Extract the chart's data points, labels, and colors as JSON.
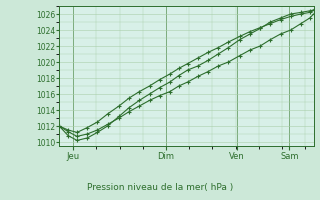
{
  "background_color": "#cce8d8",
  "plot_bg_color": "#d8f0e8",
  "grid_color": "#aacfaa",
  "line_color": "#2d6e2d",
  "ylabel_text": "Pression niveau de la mer( hPa )",
  "xtick_labels": [
    "Jeu",
    "Dim",
    "Ven",
    "Sam"
  ],
  "ylim": [
    1009.5,
    1027.0
  ],
  "yticks": [
    1010,
    1012,
    1014,
    1016,
    1018,
    1020,
    1022,
    1024,
    1026
  ],
  "series1_x": [
    0.0,
    0.035,
    0.07,
    0.11,
    0.15,
    0.19,
    0.235,
    0.275,
    0.315,
    0.355,
    0.395,
    0.435,
    0.47,
    0.505,
    0.545,
    0.585,
    0.625,
    0.665,
    0.71,
    0.75,
    0.79,
    0.83,
    0.87,
    0.91,
    0.95,
    0.985,
    1.0
  ],
  "series1_y": [
    1012.0,
    1011.3,
    1010.7,
    1011.0,
    1011.5,
    1012.2,
    1013.0,
    1013.8,
    1014.5,
    1015.2,
    1015.8,
    1016.3,
    1017.0,
    1017.5,
    1018.2,
    1018.8,
    1019.5,
    1020.0,
    1020.8,
    1021.5,
    1022.0,
    1022.8,
    1023.5,
    1024.0,
    1024.8,
    1025.5,
    1026.0
  ],
  "series2_x": [
    0.0,
    0.035,
    0.07,
    0.11,
    0.15,
    0.19,
    0.235,
    0.275,
    0.315,
    0.355,
    0.395,
    0.435,
    0.47,
    0.505,
    0.545,
    0.585,
    0.625,
    0.665,
    0.71,
    0.75,
    0.79,
    0.83,
    0.87,
    0.91,
    0.95,
    0.985,
    1.0
  ],
  "series2_y": [
    1012.0,
    1010.8,
    1010.2,
    1010.5,
    1011.2,
    1012.0,
    1013.2,
    1014.3,
    1015.2,
    1016.0,
    1016.8,
    1017.5,
    1018.3,
    1019.0,
    1019.5,
    1020.2,
    1021.0,
    1021.8,
    1022.8,
    1023.5,
    1024.2,
    1025.0,
    1025.5,
    1026.0,
    1026.2,
    1026.4,
    1026.5
  ],
  "series3_x": [
    0.0,
    0.035,
    0.07,
    0.11,
    0.15,
    0.19,
    0.235,
    0.275,
    0.315,
    0.355,
    0.395,
    0.435,
    0.47,
    0.505,
    0.545,
    0.585,
    0.625,
    0.665,
    0.71,
    0.75,
    0.79,
    0.83,
    0.87,
    0.91,
    0.95,
    0.985,
    1.0
  ],
  "series3_y": [
    1012.0,
    1011.5,
    1011.2,
    1011.8,
    1012.5,
    1013.5,
    1014.5,
    1015.5,
    1016.3,
    1017.0,
    1017.8,
    1018.5,
    1019.2,
    1019.8,
    1020.5,
    1021.2,
    1021.8,
    1022.5,
    1023.2,
    1023.8,
    1024.3,
    1024.8,
    1025.3,
    1025.7,
    1026.0,
    1026.2,
    1026.5
  ],
  "xtick_x": [
    0.055,
    0.42,
    0.7,
    0.905
  ]
}
